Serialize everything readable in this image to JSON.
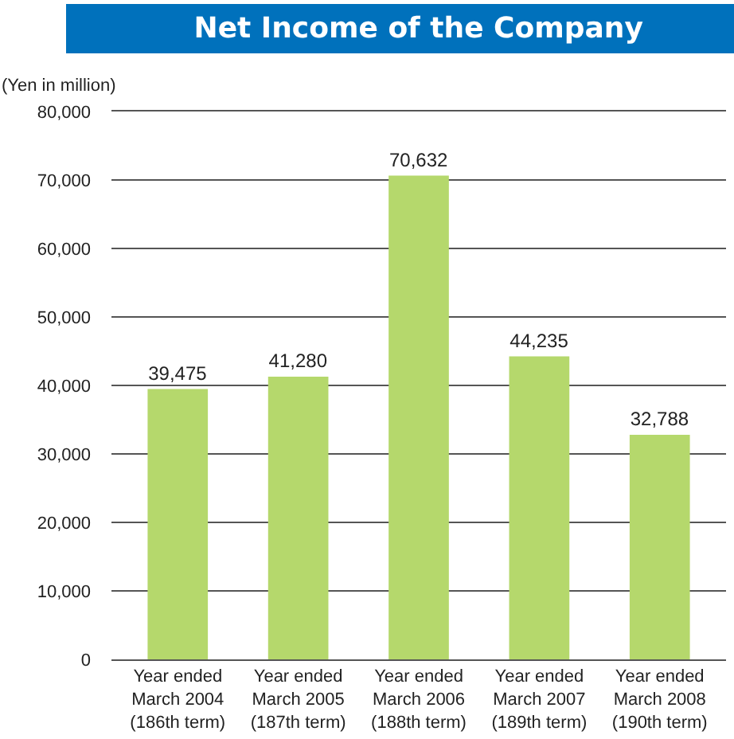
{
  "chart_data": {
    "type": "bar",
    "title": "Net Income of the Company",
    "ylabel": "(Yen in million)",
    "categories": [
      "Year ended\nMarch 2004\n(186th term)",
      "Year ended\nMarch 2005\n(187th term)",
      "Year ended\nMarch 2006\n(188th term)",
      "Year ended\nMarch 2007\n(189th term)",
      "Year ended\nMarch 2008\n(190th term)"
    ],
    "values": [
      39475,
      41280,
      70632,
      44235,
      32788
    ],
    "color": "#b5d86c",
    "ylim": [
      0,
      80000
    ],
    "yticks": [
      {
        "value": 0,
        "label": "0"
      },
      {
        "value": 10000,
        "label": "10,000"
      },
      {
        "value": 20000,
        "label": "20,000"
      },
      {
        "value": 30000,
        "label": "30,000"
      },
      {
        "value": 40000,
        "label": "40,000"
      },
      {
        "value": 50000,
        "label": "50,000"
      },
      {
        "value": 60000,
        "label": "60,000"
      },
      {
        "value": 70000,
        "label": "70,000"
      },
      {
        "value": 80000,
        "label": "80,000"
      }
    ],
    "value_labels": [
      "39,475",
      "41,280",
      "70,632",
      "44,235",
      "32,788"
    ],
    "grid": "y",
    "legend": false
  }
}
